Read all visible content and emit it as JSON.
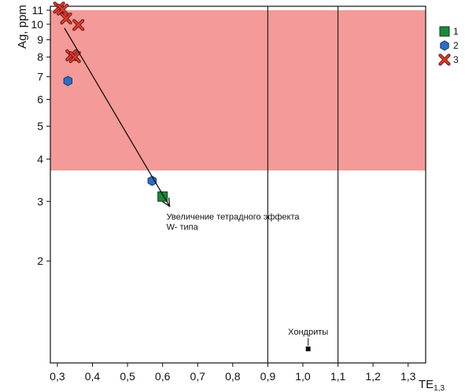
{
  "chart_data": {
    "type": "scatter",
    "xlabel": "TE",
    "xlabel_sub": "1,3",
    "ylabel": "Ag, ppm",
    "xlim": [
      0.28,
      1.35
    ],
    "ylim": [
      1.0,
      11.3
    ],
    "xticks": [
      "0,3",
      "0,4",
      "0,5",
      "0,6",
      "0,7",
      "0,8",
      "0,9",
      "1,0",
      "1,1",
      "1,2",
      "1,3"
    ],
    "yticks": [
      "2",
      "3",
      "4",
      "5",
      "6",
      "7",
      "8",
      "9",
      "10",
      "11"
    ],
    "shaded_region": {
      "y_from": 3.7,
      "y_to": 11.0,
      "color": "#f49a98"
    },
    "grid_x": [
      0.9,
      1.1
    ],
    "series": [
      {
        "name": "1",
        "marker": "square",
        "color": "#1a8a3a",
        "points": [
          [
            0.6,
            3.1
          ]
        ]
      },
      {
        "name": "2",
        "marker": "hexagon",
        "color": "#2b6fc6",
        "points": [
          [
            0.33,
            6.8
          ],
          [
            0.57,
            3.45
          ]
        ]
      },
      {
        "name": "3",
        "marker": "x",
        "color": "#e23a2a",
        "points": [
          [
            0.305,
            11.2
          ],
          [
            0.315,
            11.05
          ],
          [
            0.325,
            10.4
          ],
          [
            0.36,
            9.95
          ],
          [
            0.34,
            8.1
          ],
          [
            0.35,
            8.0
          ]
        ]
      }
    ],
    "reference_point": {
      "label": "Хондриты",
      "x": 1.015,
      "y": 1.1
    },
    "trend_arrow": {
      "from": [
        0.32,
        9.75
      ],
      "to": [
        0.62,
        2.9
      ],
      "label_lines": [
        "Увеличение тетрадного эффекта",
        "W- типа"
      ]
    },
    "legend": {
      "position": "right",
      "entries": [
        "1",
        "2",
        "3"
      ]
    }
  }
}
